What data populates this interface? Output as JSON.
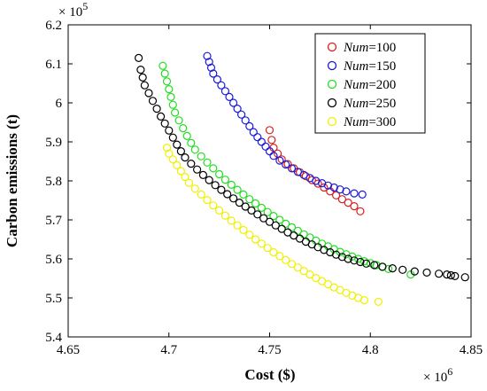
{
  "chart_data": {
    "type": "scatter",
    "xlabel": "Cost ($)",
    "ylabel": "Carbon emissions (t)",
    "x_multiplier_label": "× 10",
    "x_multiplier_exp": "6",
    "y_multiplier_label": "× 10",
    "y_multiplier_exp": "5",
    "xlim": [
      4.65,
      4.85
    ],
    "ylim": [
      5.4,
      6.2
    ],
    "x_ticks": [
      "4.65",
      "4.7",
      "4.75",
      "4.8",
      "4.85"
    ],
    "x_tick_values": [
      4.65,
      4.7,
      4.75,
      4.8,
      4.85
    ],
    "y_ticks": [
      "5.4",
      "5.5",
      "5.6",
      "5.7",
      "5.8",
      "5.9",
      "6",
      "6.1",
      "6.2"
    ],
    "y_tick_values": [
      5.4,
      5.5,
      5.6,
      5.7,
      5.8,
      5.9,
      6.0,
      6.1,
      6.2
    ],
    "grid": false,
    "legend_position": "top-right",
    "marker": "open-circle",
    "series": [
      {
        "var": "Num",
        "eq": "=100",
        "color": "#d62020",
        "x": [
          4.75,
          4.751,
          4.752,
          4.754,
          4.756,
          4.759,
          4.762,
          4.765,
          4.768,
          4.771,
          4.774,
          4.777,
          4.78,
          4.783,
          4.786,
          4.789,
          4.792,
          4.795
        ],
        "y": [
          5.93,
          5.905,
          5.885,
          5.87,
          5.855,
          5.843,
          5.832,
          5.822,
          5.812,
          5.802,
          5.793,
          5.783,
          5.773,
          5.763,
          5.753,
          5.744,
          5.735,
          5.722
        ]
      },
      {
        "var": "Num",
        "eq": "=150",
        "color": "#1a1adb",
        "x": [
          4.719,
          4.72,
          4.721,
          4.722,
          4.724,
          4.726,
          4.728,
          4.73,
          4.732,
          4.734,
          4.736,
          4.738,
          4.74,
          4.742,
          4.744,
          4.746,
          4.748,
          4.75,
          4.752,
          4.755,
          4.758,
          4.761,
          4.764,
          4.767,
          4.77,
          4.773,
          4.776,
          4.779,
          4.782,
          4.785,
          4.788,
          4.792,
          4.796
        ],
        "y": [
          6.12,
          6.105,
          6.09,
          6.075,
          6.06,
          6.045,
          6.03,
          6.015,
          6.0,
          5.985,
          5.97,
          5.955,
          5.94,
          5.925,
          5.912,
          5.9,
          5.888,
          5.876,
          5.864,
          5.852,
          5.842,
          5.832,
          5.823,
          5.815,
          5.807,
          5.8,
          5.794,
          5.788,
          5.783,
          5.778,
          5.773,
          5.768,
          5.765
        ]
      },
      {
        "var": "Num",
        "eq": "=200",
        "color": "#22dd22",
        "x": [
          4.697,
          4.698,
          4.699,
          4.7,
          4.701,
          4.702,
          4.703,
          4.705,
          4.707,
          4.709,
          4.711,
          4.713,
          4.716,
          4.719,
          4.722,
          4.725,
          4.728,
          4.731,
          4.734,
          4.737,
          4.74,
          4.743,
          4.746,
          4.749,
          4.752,
          4.755,
          4.758,
          4.761,
          4.764,
          4.767,
          4.77,
          4.773,
          4.776,
          4.779,
          4.782,
          4.785,
          4.788,
          4.791,
          4.794,
          4.797,
          4.8,
          4.803,
          4.806,
          4.809,
          4.82
        ],
        "y": [
          6.095,
          6.075,
          6.055,
          6.035,
          6.015,
          5.995,
          5.975,
          5.955,
          5.935,
          5.915,
          5.897,
          5.88,
          5.863,
          5.847,
          5.832,
          5.817,
          5.803,
          5.79,
          5.777,
          5.765,
          5.753,
          5.742,
          5.731,
          5.72,
          5.71,
          5.7,
          5.69,
          5.681,
          5.672,
          5.663,
          5.655,
          5.647,
          5.639,
          5.632,
          5.625,
          5.618,
          5.612,
          5.606,
          5.6,
          5.594,
          5.589,
          5.584,
          5.579,
          5.574,
          5.56
        ]
      },
      {
        "var": "Num",
        "eq": "=250",
        "color": "#000000",
        "x": [
          4.685,
          4.686,
          4.687,
          4.688,
          4.69,
          4.692,
          4.694,
          4.696,
          4.698,
          4.7,
          4.702,
          4.704,
          4.706,
          4.708,
          4.711,
          4.714,
          4.717,
          4.72,
          4.723,
          4.726,
          4.729,
          4.732,
          4.735,
          4.738,
          4.741,
          4.744,
          4.747,
          4.75,
          4.753,
          4.756,
          4.759,
          4.762,
          4.765,
          4.768,
          4.771,
          4.774,
          4.777,
          4.78,
          4.783,
          4.786,
          4.789,
          4.792,
          4.795,
          4.798,
          4.802,
          4.806,
          4.811,
          4.816,
          4.822,
          4.828,
          4.834,
          4.838,
          4.84,
          4.842,
          4.847
        ],
        "y": [
          6.115,
          6.085,
          6.065,
          6.045,
          6.025,
          6.005,
          5.985,
          5.965,
          5.947,
          5.929,
          5.911,
          5.893,
          5.876,
          5.86,
          5.844,
          5.829,
          5.815,
          5.802,
          5.789,
          5.777,
          5.766,
          5.755,
          5.744,
          5.734,
          5.724,
          5.714,
          5.704,
          5.695,
          5.686,
          5.677,
          5.668,
          5.66,
          5.652,
          5.644,
          5.637,
          5.63,
          5.623,
          5.617,
          5.611,
          5.605,
          5.6,
          5.596,
          5.592,
          5.588,
          5.584,
          5.58,
          5.576,
          5.572,
          5.568,
          5.565,
          5.562,
          5.56,
          5.558,
          5.556,
          5.553
        ]
      },
      {
        "var": "Num",
        "eq": "=300",
        "color": "#f0f000",
        "x": [
          4.699,
          4.7,
          4.702,
          4.704,
          4.706,
          4.708,
          4.71,
          4.713,
          4.716,
          4.719,
          4.722,
          4.725,
          4.728,
          4.731,
          4.734,
          4.737,
          4.74,
          4.743,
          4.746,
          4.749,
          4.752,
          4.755,
          4.758,
          4.761,
          4.764,
          4.767,
          4.77,
          4.773,
          4.776,
          4.779,
          4.782,
          4.785,
          4.788,
          4.791,
          4.794,
          4.797,
          4.804
        ],
        "y": [
          5.885,
          5.87,
          5.855,
          5.84,
          5.825,
          5.81,
          5.795,
          5.78,
          5.765,
          5.751,
          5.737,
          5.724,
          5.711,
          5.698,
          5.686,
          5.674,
          5.662,
          5.65,
          5.639,
          5.628,
          5.617,
          5.607,
          5.597,
          5.587,
          5.578,
          5.569,
          5.56,
          5.551,
          5.543,
          5.535,
          5.527,
          5.52,
          5.513,
          5.506,
          5.5,
          5.494,
          5.49
        ]
      }
    ]
  }
}
